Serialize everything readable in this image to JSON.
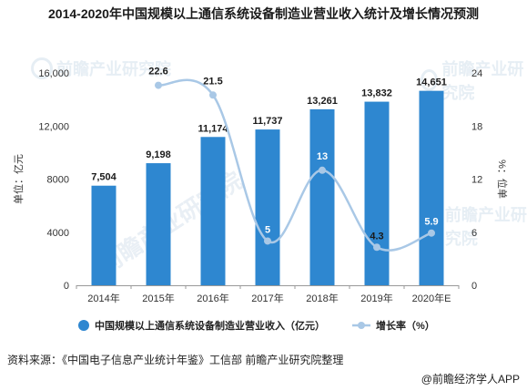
{
  "title": "2014-2020年中国规模以上通信系统设备制造业营业收入统计及增长情况预测",
  "watermark": "前瞻产业研究院",
  "source": "资料来源：《中国电子信息产业统计年鉴》工信部 前瞻产业研究院整理",
  "credit": "@前瞻经济学人APP",
  "colors": {
    "bar": "#2e87d0",
    "line": "#a9c8e6",
    "axis": "#999999",
    "text": "#333333"
  },
  "chart_data": {
    "type": "bar",
    "categories": [
      "2014年",
      "2015年",
      "2016年",
      "2017年",
      "2018年",
      "2019年",
      "2020年E"
    ],
    "left_axis": {
      "label": "单位：亿元",
      "ylim": [
        0,
        16000
      ],
      "ticks": [
        "0",
        "4000",
        "8000",
        "12,000",
        "16,000"
      ],
      "tick_values": [
        0,
        4000,
        8000,
        12000,
        16000
      ]
    },
    "right_axis": {
      "label": "%：位单",
      "ylim": [
        0,
        24
      ],
      "ticks": [
        "0",
        "6",
        "12",
        "18",
        "24"
      ],
      "tick_values": [
        0,
        6,
        12,
        18,
        24
      ]
    },
    "series": [
      {
        "name": "中国规模以上通信系统设备制造业营业收入（亿元）",
        "type": "bar",
        "axis": "left",
        "values": [
          7504,
          9198,
          11174,
          11737,
          13261,
          13832,
          14651
        ],
        "labels": [
          "7,504",
          "9,198",
          "11,174",
          "11,737",
          "13,261",
          "13,832",
          "14,651"
        ]
      },
      {
        "name": "增长率（%）",
        "type": "line",
        "axis": "right",
        "values": [
          null,
          22.6,
          21.5,
          5,
          13,
          4.3,
          5.9
        ],
        "labels": [
          "",
          "22.6",
          "21.5",
          "5",
          "13",
          "4.3",
          "5.9"
        ]
      }
    ],
    "grid": false,
    "legend_position": "bottom"
  }
}
